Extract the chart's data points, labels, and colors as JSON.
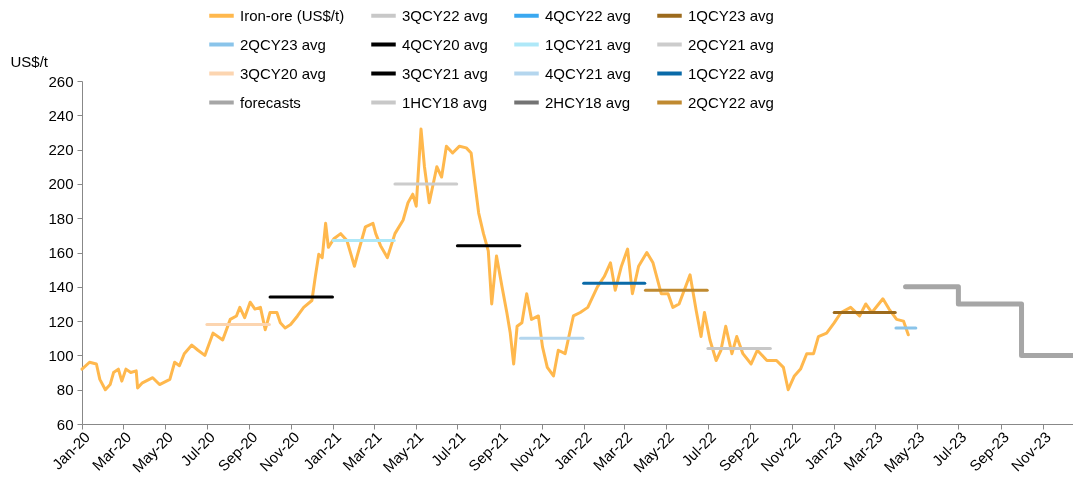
{
  "chart_data": {
    "type": "line",
    "ylabel": "US$/t",
    "ylim": [
      60,
      260
    ],
    "yticks": [
      60,
      80,
      100,
      120,
      140,
      160,
      180,
      200,
      220,
      240,
      260
    ],
    "xlim": [
      "2020-01-01",
      "2023-12-15"
    ],
    "xticks": [
      {
        "value": "2020-01",
        "label": "Jan-20"
      },
      {
        "value": "2020-03",
        "label": "Mar-20"
      },
      {
        "value": "2020-05",
        "label": "May-20"
      },
      {
        "value": "2020-07",
        "label": "Jul-20"
      },
      {
        "value": "2020-09",
        "label": "Sep-20"
      },
      {
        "value": "2020-11",
        "label": "Nov-20"
      },
      {
        "value": "2021-01",
        "label": "Jan-21"
      },
      {
        "value": "2021-03",
        "label": "Mar-21"
      },
      {
        "value": "2021-05",
        "label": "May-21"
      },
      {
        "value": "2021-07",
        "label": "Jul-21"
      },
      {
        "value": "2021-09",
        "label": "Sep-21"
      },
      {
        "value": "2021-11",
        "label": "Nov-21"
      },
      {
        "value": "2022-01",
        "label": "Jan-22"
      },
      {
        "value": "2022-03",
        "label": "Mar-22"
      },
      {
        "value": "2022-05",
        "label": "May-22"
      },
      {
        "value": "2022-07",
        "label": "Jul-22"
      },
      {
        "value": "2022-09",
        "label": "Sep-22"
      },
      {
        "value": "2022-11",
        "label": "Nov-22"
      },
      {
        "value": "2023-01",
        "label": "Jan-23"
      },
      {
        "value": "2023-03",
        "label": "Mar-23"
      },
      {
        "value": "2023-05",
        "label": "May-23"
      },
      {
        "value": "2023-07",
        "label": "Jul-23"
      },
      {
        "value": "2023-09",
        "label": "Sep-23"
      },
      {
        "value": "2023-11",
        "label": "Nov-23"
      }
    ],
    "legend": "top",
    "series": [
      {
        "name": "Iron-ore (US$/t)",
        "color": "#ffb84d",
        "x": [
          "2020-01-01",
          "2020-01-12",
          "2020-01-22",
          "2020-01-27",
          "2020-02-04",
          "2020-02-11",
          "2020-02-16",
          "2020-02-23",
          "2020-02-28",
          "2020-03-05",
          "2020-03-12",
          "2020-03-20",
          "2020-03-22",
          "2020-03-29",
          "2020-04-13",
          "2020-04-23",
          "2020-05-08",
          "2020-05-15",
          "2020-05-22",
          "2020-05-29",
          "2020-06-09",
          "2020-06-18",
          "2020-06-28",
          "2020-07-10",
          "2020-07-24",
          "2020-08-04",
          "2020-08-13",
          "2020-08-18",
          "2020-08-25",
          "2020-09-02",
          "2020-09-09",
          "2020-09-17",
          "2020-09-24",
          "2020-10-01",
          "2020-10-11",
          "2020-10-16",
          "2020-10-23",
          "2020-10-31",
          "2020-11-10",
          "2020-11-19",
          "2020-12-01",
          "2020-12-06",
          "2020-12-11",
          "2020-12-16",
          "2020-12-21",
          "2020-12-25",
          "2021-01-02",
          "2021-01-12",
          "2021-01-21",
          "2021-02-01",
          "2021-02-05",
          "2021-02-17",
          "2021-02-28",
          "2021-03-04",
          "2021-03-11",
          "2021-03-21",
          "2021-04-01",
          "2021-04-13",
          "2021-04-20",
          "2021-04-27",
          "2021-05-02",
          "2021-05-09",
          "2021-05-14",
          "2021-05-21",
          "2021-06-01",
          "2021-06-08",
          "2021-06-15",
          "2021-06-24",
          "2021-07-04",
          "2021-07-14",
          "2021-07-21",
          "2021-07-26",
          "2021-08-01",
          "2021-08-08",
          "2021-08-15",
          "2021-08-20",
          "2021-08-27",
          "2021-09-04",
          "2021-09-11",
          "2021-09-16",
          "2021-09-21",
          "2021-09-26",
          "2021-10-03",
          "2021-10-10",
          "2021-10-17",
          "2021-10-27",
          "2021-11-02",
          "2021-11-09",
          "2021-11-18",
          "2021-11-25",
          "2021-12-05",
          "2021-12-17",
          "2021-12-27",
          "2022-01-07",
          "2022-01-21",
          "2022-01-31",
          "2022-02-09",
          "2022-02-16",
          "2022-02-25",
          "2022-03-06",
          "2022-03-13",
          "2022-03-22",
          "2022-04-03",
          "2022-04-12",
          "2022-04-24",
          "2022-05-04",
          "2022-05-11",
          "2022-05-20",
          "2022-06-05",
          "2022-06-14",
          "2022-06-21",
          "2022-06-26",
          "2022-07-04",
          "2022-07-13",
          "2022-07-20",
          "2022-07-27",
          "2022-08-05",
          "2022-08-12",
          "2022-08-21",
          "2022-09-02",
          "2022-09-11",
          "2022-09-25",
          "2022-10-09",
          "2022-10-19",
          "2022-10-26",
          "2022-11-04",
          "2022-11-13",
          "2022-11-22",
          "2022-12-02",
          "2022-12-09",
          "2022-12-21",
          "2023-01-01",
          "2023-01-11",
          "2023-01-25",
          "2023-02-07",
          "2023-02-16",
          "2023-02-25",
          "2023-03-13",
          "2023-03-22",
          "2023-04-02",
          "2023-04-12",
          "2023-04-19"
        ],
        "values": [
          92,
          96,
          95,
          86,
          80,
          83,
          90,
          92,
          85,
          92,
          90,
          91,
          81,
          84,
          87,
          83,
          86,
          96,
          94,
          101,
          106,
          103,
          100,
          113,
          109,
          121,
          123,
          128,
          122,
          131,
          127,
          128,
          115,
          125,
          125,
          119,
          116,
          118,
          123,
          128,
          132,
          146,
          159,
          157,
          177,
          163,
          168,
          171,
          167,
          152,
          158,
          175,
          177,
          171,
          164,
          157,
          171,
          179,
          189,
          194,
          187,
          232,
          210,
          189,
          210,
          204,
          222,
          218,
          222,
          221,
          218,
          202,
          183,
          171,
          161,
          130,
          158,
          140,
          125,
          113,
          95,
          117,
          119,
          136,
          121,
          123,
          105,
          93,
          88,
          103,
          101,
          123,
          125,
          128,
          140,
          146,
          154,
          138,
          152,
          162,
          136,
          152,
          160,
          154,
          136,
          136,
          128,
          130,
          147,
          126,
          111,
          125,
          109,
          97,
          103,
          117,
          101,
          111,
          101,
          95,
          103,
          97,
          97,
          93,
          80,
          88,
          92,
          101,
          101,
          111,
          113,
          119,
          125,
          128,
          123,
          130,
          125,
          133,
          127,
          121,
          120,
          112
        ]
      },
      {
        "name": "3QCY22 avg",
        "color": "#c8c8c8",
        "x": [
          "2022-07-01",
          "2022-09-30"
        ],
        "values": [
          104,
          104
        ]
      },
      {
        "name": "4QCY22 avg",
        "color": "#3aa8f0"
      },
      {
        "name": "1QCY23 avg",
        "color": "#9c6a1c",
        "x": [
          "2023-01-01",
          "2023-03-31"
        ],
        "values": [
          125,
          125
        ]
      },
      {
        "name": "2QCY23 avg",
        "color": "#8ac4ea",
        "x": [
          "2023-04-01",
          "2023-04-30"
        ],
        "values": [
          116,
          116
        ]
      },
      {
        "name": "4QCY20 avg",
        "color": "#000000",
        "x": [
          "2020-10-01",
          "2020-12-31"
        ],
        "values": [
          134,
          134
        ]
      },
      {
        "name": "1QCY21 avg",
        "color": "#aee8f8",
        "x": [
          "2021-01-01",
          "2021-03-31"
        ],
        "values": [
          167,
          167
        ]
      },
      {
        "name": "2QCY21 avg",
        "color": "#cccccc",
        "x": [
          "2021-04-01",
          "2021-06-30"
        ],
        "values": [
          200,
          200
        ]
      },
      {
        "name": "3QCY20 avg",
        "color": "#fcd5b0",
        "x": [
          "2020-07-01",
          "2020-09-30"
        ],
        "values": [
          118,
          118
        ]
      },
      {
        "name": "3QCY21 avg",
        "color": "#000000",
        "x": [
          "2021-07-01",
          "2021-09-30"
        ],
        "values": [
          164,
          164
        ]
      },
      {
        "name": "4QCY21 avg",
        "color": "#b4d6ee",
        "x": [
          "2021-10-01",
          "2021-12-31"
        ],
        "values": [
          110,
          110
        ]
      },
      {
        "name": "1QCY22 avg",
        "color": "#0a6aa8",
        "x": [
          "2022-01-01",
          "2022-03-31"
        ],
        "values": [
          142,
          142
        ]
      },
      {
        "name": "forecasts",
        "type": "step",
        "color": "#a6a6a6",
        "x": [
          "2023-04-15",
          "2023-07-01",
          "2023-10-01",
          "2023-12-15"
        ],
        "values": [
          140,
          130,
          100,
          100
        ]
      },
      {
        "name": "1HCY18 avg",
        "color": "#c8c8c8"
      },
      {
        "name": "2HCY18 avg",
        "color": "#737373"
      },
      {
        "name": "2QCY22 avg",
        "color": "#c08a30",
        "x": [
          "2022-04-01",
          "2022-06-30"
        ],
        "values": [
          138,
          138
        ]
      }
    ]
  }
}
